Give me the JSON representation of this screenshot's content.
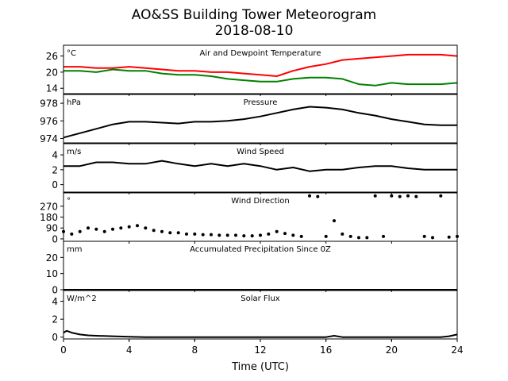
{
  "figure": {
    "title_line1": "AO&SS Building Tower Meteorogram",
    "title_line2": "2018-08-10",
    "xlabel": "Time (UTC)"
  },
  "chart_data": [
    {
      "type": "line",
      "title": "Air and Dewpoint Temperature",
      "unit_label": "°C",
      "xlim": [
        0,
        24
      ],
      "ylim": [
        12,
        30
      ],
      "yticks": [
        14,
        20,
        26
      ],
      "xticks": [
        0,
        4,
        8,
        12,
        16,
        20,
        24
      ],
      "series": [
        {
          "key": "air",
          "color": "#ff0000",
          "x": [
            0,
            1,
            2,
            3,
            4,
            5,
            6,
            7,
            8,
            9,
            10,
            11,
            12,
            13,
            14,
            15,
            16,
            17,
            18,
            19,
            20,
            21,
            22,
            23,
            24
          ],
          "values": [
            22,
            22,
            21.5,
            21.5,
            22,
            21.5,
            21,
            20.5,
            20.5,
            20,
            20,
            19.5,
            19,
            18.5,
            20.5,
            22,
            23,
            24.5,
            25,
            25.5,
            26,
            26.5,
            26.5,
            26.5,
            26
          ]
        },
        {
          "key": "dewpoint",
          "color": "#008000",
          "x": [
            0,
            1,
            2,
            3,
            4,
            5,
            6,
            7,
            8,
            9,
            10,
            11,
            12,
            13,
            14,
            15,
            16,
            17,
            18,
            19,
            20,
            21,
            22,
            23,
            24
          ],
          "values": [
            20.5,
            20.5,
            20,
            21,
            20.5,
            20.5,
            19.5,
            19,
            19,
            18.5,
            17.5,
            17,
            16.5,
            16.5,
            17.5,
            18,
            18,
            17.5,
            15.5,
            15,
            16,
            15.5,
            15.5,
            15.5,
            16
          ]
        }
      ]
    },
    {
      "type": "line",
      "title": "Pressure",
      "unit_label": "hPa",
      "xlim": [
        0,
        24
      ],
      "ylim": [
        973.5,
        979
      ],
      "yticks": [
        974,
        976,
        978
      ],
      "xticks": [
        0,
        4,
        8,
        12,
        16,
        20,
        24
      ],
      "series": [
        {
          "key": "pressure",
          "color": "#000000",
          "x": [
            0,
            1,
            2,
            3,
            4,
            5,
            6,
            7,
            8,
            9,
            10,
            11,
            12,
            13,
            14,
            15,
            16,
            17,
            18,
            19,
            20,
            21,
            22,
            23,
            24
          ],
          "values": [
            974.1,
            974.6,
            975.1,
            975.6,
            975.9,
            975.9,
            975.8,
            975.7,
            975.9,
            975.9,
            976,
            976.2,
            976.5,
            976.9,
            977.3,
            977.6,
            977.5,
            977.3,
            976.9,
            976.6,
            976.2,
            975.9,
            975.6,
            975.5,
            975.5
          ]
        }
      ]
    },
    {
      "type": "line",
      "title": "Wind Speed",
      "unit_label": "m/s",
      "xlim": [
        0,
        24
      ],
      "ylim": [
        -1,
        5.5
      ],
      "yticks": [
        0,
        2,
        4
      ],
      "xticks": [
        0,
        4,
        8,
        12,
        16,
        20,
        24
      ],
      "series": [
        {
          "key": "wind_speed",
          "color": "#000000",
          "x": [
            0,
            1,
            2,
            3,
            4,
            5,
            6,
            7,
            8,
            9,
            10,
            11,
            12,
            13,
            14,
            15,
            16,
            17,
            18,
            19,
            20,
            21,
            22,
            23,
            24
          ],
          "values": [
            2.5,
            2.5,
            3,
            3,
            2.8,
            2.8,
            3.2,
            2.8,
            2.5,
            2.8,
            2.5,
            2.8,
            2.5,
            2,
            2.3,
            1.8,
            2,
            2,
            2.3,
            2.5,
            2.5,
            2.2,
            2,
            2,
            2
          ]
        }
      ]
    },
    {
      "type": "scatter",
      "title": "Wind Direction",
      "unit_label": "°",
      "xlim": [
        0,
        24
      ],
      "ylim": [
        -20,
        380
      ],
      "yticks": [
        0,
        90,
        180,
        270
      ],
      "xticks": [
        0,
        4,
        8,
        12,
        16,
        20,
        24
      ],
      "series": [
        {
          "key": "wind_direction",
          "color": "#000000",
          "x": [
            0,
            0.5,
            1,
            1.5,
            2,
            2.5,
            3,
            3.5,
            4,
            4.5,
            5,
            5.5,
            6,
            6.5,
            7,
            7.5,
            8,
            8.5,
            9,
            9.5,
            10,
            10.5,
            11,
            11.5,
            12,
            12.5,
            13,
            13.5,
            14,
            14.5,
            15,
            15.5,
            16,
            16.5,
            17,
            17.5,
            18,
            18.5,
            19,
            19.5,
            20,
            20.5,
            21,
            21.5,
            22,
            22.5,
            23,
            23.5,
            24
          ],
          "values": [
            60,
            40,
            60,
            90,
            80,
            60,
            80,
            90,
            100,
            110,
            90,
            70,
            60,
            50,
            50,
            40,
            40,
            35,
            35,
            30,
            30,
            30,
            25,
            25,
            30,
            40,
            60,
            45,
            30,
            20,
            355,
            350,
            20,
            150,
            40,
            20,
            10,
            10,
            355,
            20,
            355,
            350,
            355,
            350,
            20,
            10,
            355,
            15,
            20
          ]
        }
      ]
    },
    {
      "type": "line",
      "title": "Accumulated Precipitation Since 0Z",
      "unit_label": "mm",
      "xlim": [
        0,
        24
      ],
      "ylim": [
        0,
        30
      ],
      "yticks": [
        0,
        10,
        20
      ],
      "xticks": [
        0,
        4,
        8,
        12,
        16,
        20,
        24
      ],
      "series": [
        {
          "key": "precip",
          "color": "#000000",
          "x": [
            0,
            24
          ],
          "values": [
            0,
            0
          ]
        }
      ]
    },
    {
      "type": "line",
      "title": "Solar Flux",
      "unit_label": "W/m^2",
      "xlim": [
        0,
        24
      ],
      "ylim": [
        -0.2,
        5.2
      ],
      "yticks": [
        0,
        2,
        4
      ],
      "xticks": [
        0,
        4,
        8,
        12,
        16,
        20,
        24
      ],
      "series": [
        {
          "key": "solar",
          "color": "#000000",
          "x": [
            0,
            0.2,
            0.5,
            1,
            1.5,
            2,
            3,
            4,
            5,
            8,
            12,
            16,
            16.5,
            17,
            20,
            23,
            23.5,
            24
          ],
          "values": [
            0.5,
            0.7,
            0.5,
            0.3,
            0.2,
            0.15,
            0.1,
            0.05,
            0,
            0,
            0,
            0,
            0.15,
            0,
            0,
            0,
            0.1,
            0.3
          ]
        }
      ]
    }
  ]
}
